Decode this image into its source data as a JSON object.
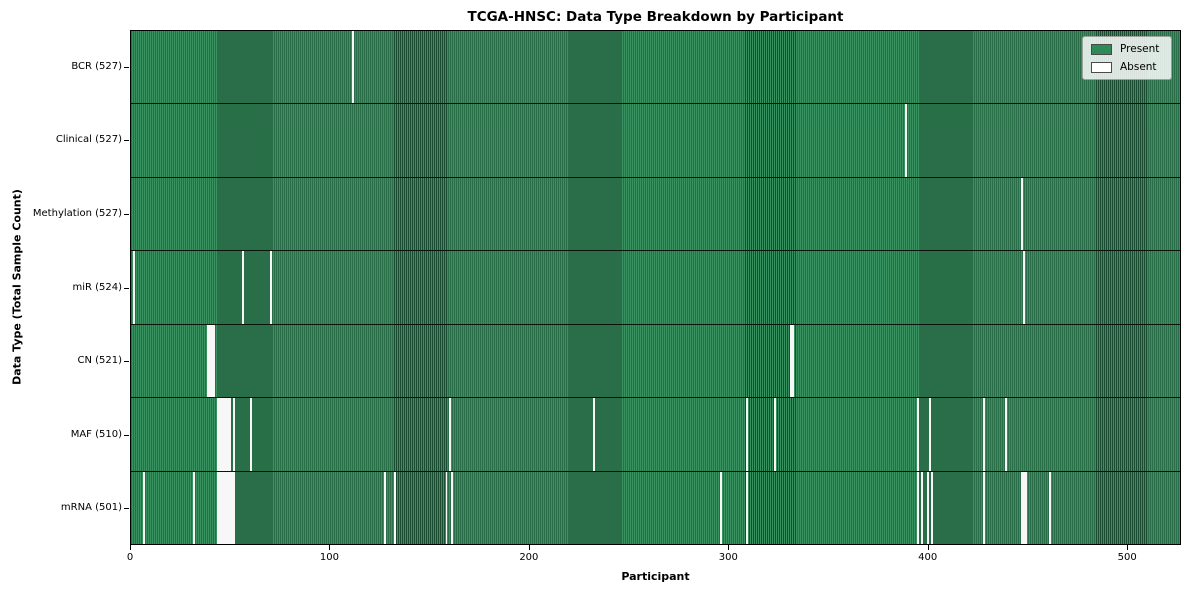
{
  "chart_data": {
    "type": "heatmap",
    "title": "TCGA-HNSC: Data Type Breakdown by Participant",
    "xlabel": "Participant",
    "ylabel": "Data Type (Total Sample Count)",
    "x_ticks": [
      0,
      100,
      200,
      300,
      400,
      500
    ],
    "x_range": [
      0,
      527
    ],
    "n_participants": 527,
    "grid": false,
    "colors": {
      "present": "#2e8b57",
      "absent": "#f7f7f7",
      "cell_edge": "rgba(0,0,0,0.45)"
    },
    "legend": {
      "position": "upper right",
      "entries": [
        {
          "label": "Present",
          "color": "#2e8b57"
        },
        {
          "label": "Absent",
          "color": "#ffffff"
        }
      ]
    },
    "rows": [
      {
        "data_type": "BCR",
        "label": "BCR (527)",
        "total_samples": 527,
        "absent_participants": [
          111
        ]
      },
      {
        "data_type": "Clinical",
        "label": "Clinical (527)",
        "total_samples": 527,
        "absent_participants": [
          389
        ]
      },
      {
        "data_type": "Methylation",
        "label": "Methylation (527)",
        "total_samples": 527,
        "absent_participants": [
          447
        ]
      },
      {
        "data_type": "miR",
        "label": "miR (524)",
        "total_samples": 524,
        "absent_participants": [
          1,
          56,
          70,
          448
        ]
      },
      {
        "data_type": "CN",
        "label": "CN (521)",
        "total_samples": 521,
        "absent_participants": [
          38,
          39,
          40,
          41,
          331,
          332
        ]
      },
      {
        "data_type": "MAF",
        "label": "MAF (510)",
        "total_samples": 510,
        "absent_participants": [
          43,
          44,
          45,
          46,
          47,
          48,
          49,
          51,
          60,
          160,
          232,
          309,
          323,
          395,
          401,
          428,
          439
        ]
      },
      {
        "data_type": "mRNA",
        "label": "mRNA (501)",
        "total_samples": 501,
        "absent_participants": [
          6,
          31,
          43,
          44,
          45,
          46,
          47,
          48,
          49,
          50,
          51,
          127,
          132,
          158,
          161,
          296,
          309,
          395,
          397,
          400,
          402,
          428,
          447,
          448,
          449,
          461
        ]
      }
    ]
  }
}
